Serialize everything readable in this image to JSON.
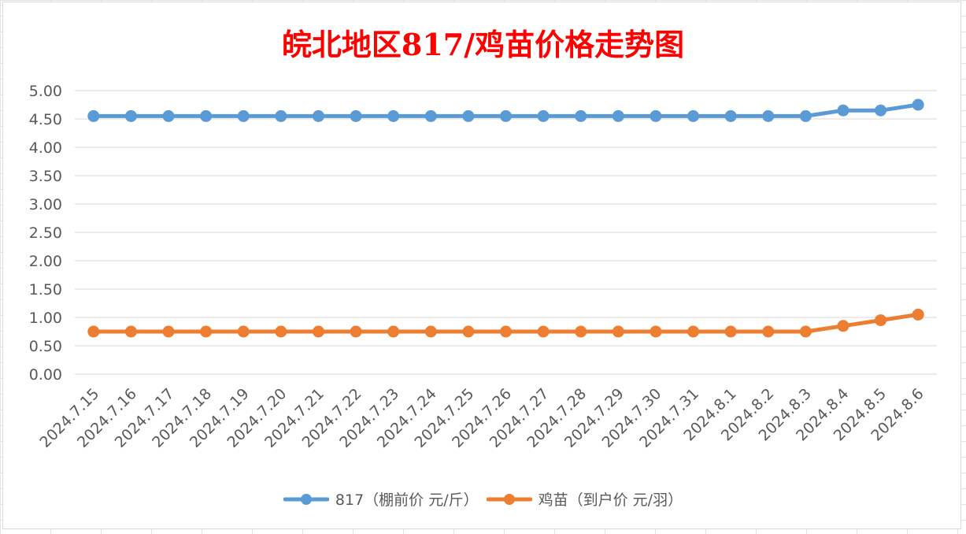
{
  "chart_data": {
    "type": "line",
    "title": "皖北地区817/鸡苗价格走势图",
    "xlabel": "",
    "ylabel": "",
    "categories": [
      "2024.7.15",
      "2024.7.16",
      "2024.7.17",
      "2024.7.18",
      "2024.7.19",
      "2024.7.20",
      "2024.7.21",
      "2024.7.22",
      "2024.7.23",
      "2024.7.24",
      "2024.7.25",
      "2024.7.26",
      "2024.7.27",
      "2024.7.28",
      "2024.7.29",
      "2024.7.30",
      "2024.7.31",
      "2024.8.1",
      "2024.8.2",
      "2024.8.3",
      "2024.8.4",
      "2024.8.5",
      "2024.8.6"
    ],
    "y_ticks": [
      "0.00",
      "0.50",
      "1.00",
      "1.50",
      "2.00",
      "2.50",
      "3.00",
      "3.50",
      "4.00",
      "4.50",
      "5.00"
    ],
    "ylim": [
      0,
      5
    ],
    "grid": true,
    "legend_position": "bottom",
    "series": [
      {
        "name": "817（棚前价 元/斤）",
        "color": "#5b9bd5",
        "values": [
          4.55,
          4.55,
          4.55,
          4.55,
          4.55,
          4.55,
          4.55,
          4.55,
          4.55,
          4.55,
          4.55,
          4.55,
          4.55,
          4.55,
          4.55,
          4.55,
          4.55,
          4.55,
          4.55,
          4.55,
          4.65,
          4.65,
          4.75
        ]
      },
      {
        "name": "鸡苗（到户价 元/羽）",
        "color": "#ed7d31",
        "values": [
          0.75,
          0.75,
          0.75,
          0.75,
          0.75,
          0.75,
          0.75,
          0.75,
          0.75,
          0.75,
          0.75,
          0.75,
          0.75,
          0.75,
          0.75,
          0.75,
          0.75,
          0.75,
          0.75,
          0.75,
          0.85,
          0.95,
          1.05
        ]
      }
    ]
  }
}
